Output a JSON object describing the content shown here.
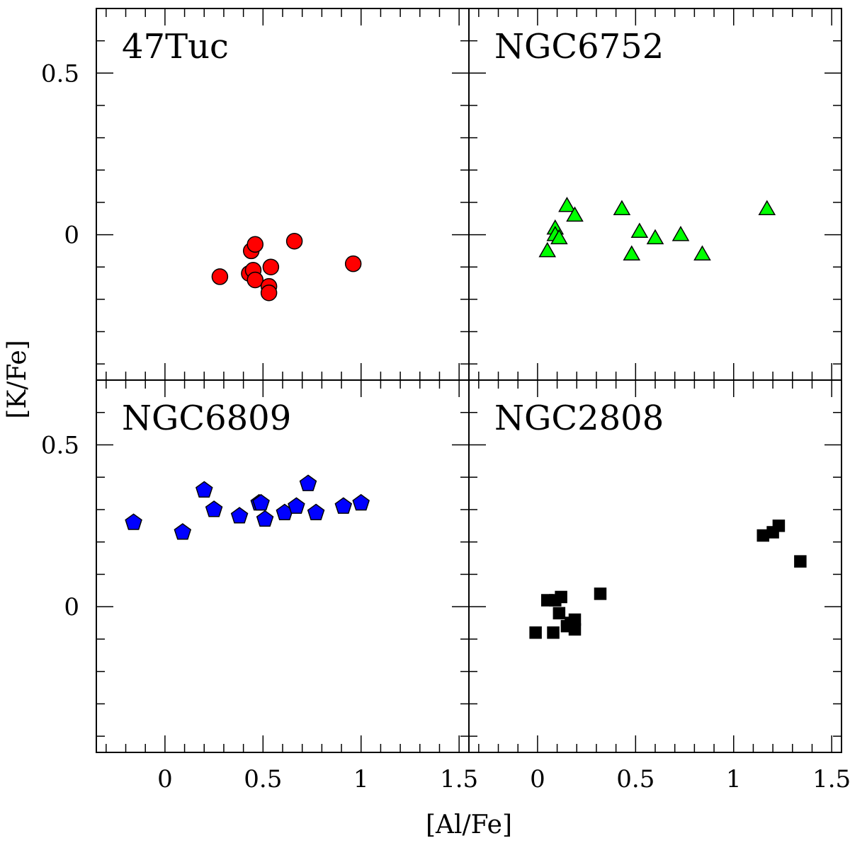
{
  "chart_data": {
    "type": "scatter",
    "xlabel": "[Al/Fe]",
    "ylabel": "[K/Fe]",
    "xlim": [
      -0.35,
      1.55
    ],
    "ylim": [
      -0.45,
      0.7
    ],
    "x_ticks": [
      "0",
      "0.5",
      "1",
      "1.5"
    ],
    "y_ticks": [
      "0",
      "0.5"
    ],
    "panels": [
      {
        "title": "47Tuc",
        "marker": "circle",
        "color": "#ff0000",
        "points": [
          {
            "x": 0.28,
            "y": -0.13
          },
          {
            "x": 0.43,
            "y": -0.12
          },
          {
            "x": 0.44,
            "y": -0.05
          },
          {
            "x": 0.46,
            "y": -0.03
          },
          {
            "x": 0.45,
            "y": -0.11
          },
          {
            "x": 0.46,
            "y": -0.14
          },
          {
            "x": 0.54,
            "y": -0.1
          },
          {
            "x": 0.53,
            "y": -0.16
          },
          {
            "x": 0.53,
            "y": -0.18
          },
          {
            "x": 0.66,
            "y": -0.02
          },
          {
            "x": 0.96,
            "y": -0.09
          }
        ]
      },
      {
        "title": "NGC6752",
        "marker": "triangle",
        "color": "#00ff00",
        "points": [
          {
            "x": 0.05,
            "y": -0.05
          },
          {
            "x": 0.09,
            "y": 0.02
          },
          {
            "x": 0.09,
            "y": 0.0
          },
          {
            "x": 0.11,
            "y": -0.01
          },
          {
            "x": 0.15,
            "y": 0.09
          },
          {
            "x": 0.19,
            "y": 0.06
          },
          {
            "x": 0.43,
            "y": 0.08
          },
          {
            "x": 0.48,
            "y": -0.06
          },
          {
            "x": 0.52,
            "y": 0.01
          },
          {
            "x": 0.6,
            "y": -0.01
          },
          {
            "x": 0.73,
            "y": 0.0
          },
          {
            "x": 0.84,
            "y": -0.06
          },
          {
            "x": 1.17,
            "y": 0.08
          }
        ]
      },
      {
        "title": "NGC6809",
        "marker": "pentagon",
        "color": "#0000ff",
        "points": [
          {
            "x": -0.16,
            "y": 0.26
          },
          {
            "x": 0.09,
            "y": 0.23
          },
          {
            "x": 0.2,
            "y": 0.36
          },
          {
            "x": 0.25,
            "y": 0.3
          },
          {
            "x": 0.38,
            "y": 0.28
          },
          {
            "x": 0.48,
            "y": 0.32
          },
          {
            "x": 0.49,
            "y": 0.32
          },
          {
            "x": 0.51,
            "y": 0.27
          },
          {
            "x": 0.61,
            "y": 0.29
          },
          {
            "x": 0.67,
            "y": 0.31
          },
          {
            "x": 0.73,
            "y": 0.38
          },
          {
            "x": 0.77,
            "y": 0.29
          },
          {
            "x": 0.91,
            "y": 0.31
          },
          {
            "x": 1.0,
            "y": 0.32
          }
        ]
      },
      {
        "title": "NGC2808",
        "marker": "square",
        "color": "#000000",
        "points": [
          {
            "x": -0.01,
            "y": -0.08
          },
          {
            "x": 0.05,
            "y": 0.02
          },
          {
            "x": 0.08,
            "y": -0.08
          },
          {
            "x": 0.09,
            "y": 0.02
          },
          {
            "x": 0.11,
            "y": -0.02
          },
          {
            "x": 0.12,
            "y": 0.03
          },
          {
            "x": 0.15,
            "y": -0.06
          },
          {
            "x": 0.17,
            "y": -0.05
          },
          {
            "x": 0.19,
            "y": -0.04
          },
          {
            "x": 0.19,
            "y": -0.07
          },
          {
            "x": 0.32,
            "y": 0.04
          },
          {
            "x": 1.15,
            "y": 0.22
          },
          {
            "x": 1.2,
            "y": 0.23
          },
          {
            "x": 1.23,
            "y": 0.25
          },
          {
            "x": 1.34,
            "y": 0.14
          }
        ]
      }
    ]
  }
}
